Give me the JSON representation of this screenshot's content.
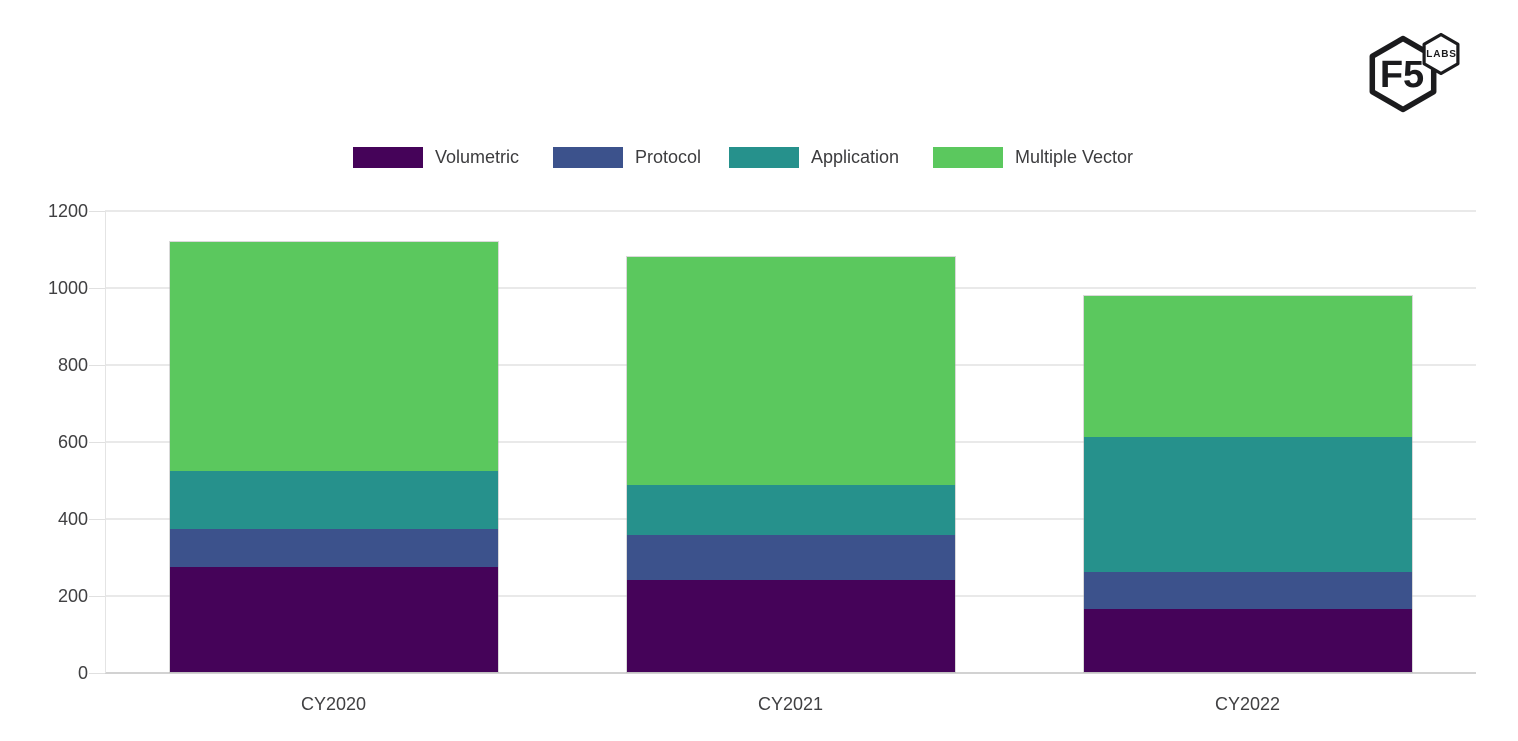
{
  "logo": {
    "f5": "F5",
    "labs": "LABS"
  },
  "chart_data": {
    "type": "bar",
    "stacked": true,
    "title": "",
    "xlabel": "",
    "ylabel": "",
    "categories": [
      "CY2020",
      "CY2021",
      "CY2022"
    ],
    "series": [
      {
        "name": "Volumetric",
        "color": "#450359",
        "values": [
          277,
          245,
          169
        ]
      },
      {
        "name": "Protocol",
        "color": "#3c528c",
        "values": [
          100,
          117,
          95
        ]
      },
      {
        "name": "Application",
        "color": "#26918c",
        "values": [
          150,
          128,
          352
        ]
      },
      {
        "name": "Multiple Vector",
        "color": "#5bc85e",
        "values": [
          596,
          594,
          366
        ]
      }
    ],
    "totals": [
      1123,
      1084,
      982
    ],
    "ylim": [
      0,
      1200
    ],
    "yticks": [
      0,
      200,
      400,
      600,
      800,
      1000,
      1200
    ],
    "grid": "horizontal",
    "legend_position": "top"
  }
}
